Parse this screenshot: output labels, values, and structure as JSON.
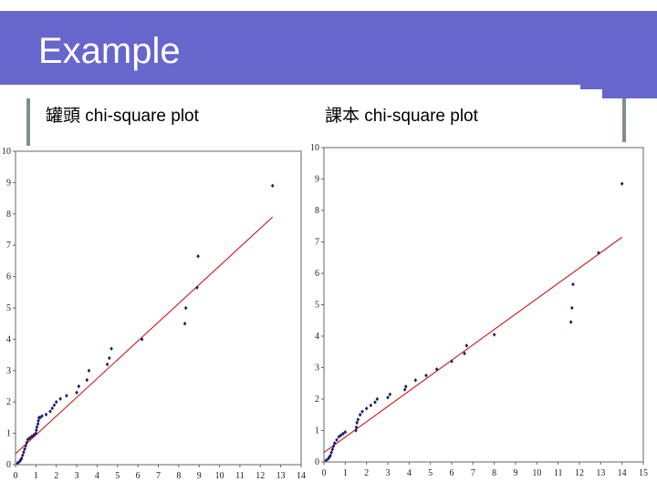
{
  "slide": {
    "title": "Example"
  },
  "charts_header": [
    {
      "label": "罐頭 chi-square plot"
    },
    {
      "label": "課本 chi-square plot"
    }
  ],
  "chart_data": [
    {
      "type": "scatter",
      "title": "罐頭 chi-square plot",
      "xlabel": "",
      "ylabel": "",
      "xlim": [
        0,
        14
      ],
      "ylim": [
        0,
        10
      ],
      "x_ticks": [
        "0",
        "1",
        "2",
        "3",
        "4",
        "5",
        "6",
        "7",
        "8",
        "9",
        "10",
        "11",
        "12",
        "13",
        "14"
      ],
      "y_ticks": [
        "0",
        "1",
        "2",
        "3",
        "4",
        "5",
        "6",
        "7",
        "8",
        "9",
        "10"
      ],
      "grid": false,
      "fit_line": {
        "x": [
          0,
          12.6
        ],
        "y": [
          0.35,
          7.9
        ],
        "color": "#cc0000"
      },
      "points": {
        "x": [
          0.1,
          0.2,
          0.25,
          0.3,
          0.35,
          0.4,
          0.45,
          0.5,
          0.55,
          0.6,
          0.7,
          0.8,
          0.9,
          1.0,
          1.02,
          1.05,
          1.1,
          1.12,
          1.15,
          1.2,
          1.3,
          1.5,
          1.7,
          1.8,
          1.9,
          2.0,
          2.2,
          2.5,
          3.0,
          3.1,
          3.5,
          3.6,
          4.5,
          4.6,
          4.7,
          6.2,
          8.3,
          8.35,
          8.9,
          8.95,
          12.6
        ],
        "y": [
          0.05,
          0.1,
          0.15,
          0.2,
          0.3,
          0.4,
          0.5,
          0.6,
          0.7,
          0.8,
          0.85,
          0.9,
          0.95,
          1.0,
          1.1,
          1.2,
          1.3,
          1.4,
          1.5,
          1.5,
          1.55,
          1.6,
          1.7,
          1.8,
          1.9,
          2.0,
          2.1,
          2.2,
          2.3,
          2.5,
          2.7,
          3.0,
          3.2,
          3.4,
          3.7,
          4.0,
          4.5,
          5.0,
          5.65,
          6.65,
          8.9
        ]
      }
    },
    {
      "type": "scatter",
      "title": "課本 chi-square plot",
      "xlabel": "",
      "ylabel": "",
      "xlim": [
        0,
        15
      ],
      "ylim": [
        0,
        10
      ],
      "x_ticks": [
        "0",
        "1",
        "2",
        "3",
        "4",
        "5",
        "6",
        "7",
        "8",
        "9",
        "10",
        "11",
        "12",
        "13",
        "14",
        "15"
      ],
      "y_ticks": [
        "0",
        "1",
        "2",
        "3",
        "4",
        "5",
        "6",
        "7",
        "8",
        "9",
        "10"
      ],
      "grid": false,
      "fit_line": {
        "x": [
          0,
          14
        ],
        "y": [
          0.3,
          7.15
        ],
        "color": "#cc0000"
      },
      "points": {
        "x": [
          0.1,
          0.2,
          0.25,
          0.3,
          0.35,
          0.4,
          0.45,
          0.5,
          0.6,
          0.7,
          0.8,
          0.9,
          1.0,
          1.5,
          1.52,
          1.55,
          1.6,
          1.7,
          1.8,
          2.0,
          2.2,
          2.4,
          2.5,
          3.0,
          3.1,
          3.8,
          3.85,
          4.3,
          4.8,
          5.3,
          6.0,
          6.6,
          6.7,
          8.0,
          11.6,
          11.65,
          11.7,
          12.9,
          14.0
        ],
        "y": [
          0.05,
          0.1,
          0.15,
          0.2,
          0.3,
          0.4,
          0.5,
          0.6,
          0.7,
          0.8,
          0.85,
          0.9,
          0.95,
          1.0,
          1.1,
          1.25,
          1.35,
          1.5,
          1.6,
          1.7,
          1.8,
          1.9,
          2.0,
          2.05,
          2.15,
          2.3,
          2.4,
          2.6,
          2.75,
          2.95,
          3.2,
          3.45,
          3.7,
          4.05,
          4.45,
          4.9,
          5.65,
          6.65,
          8.85
        ]
      }
    }
  ]
}
